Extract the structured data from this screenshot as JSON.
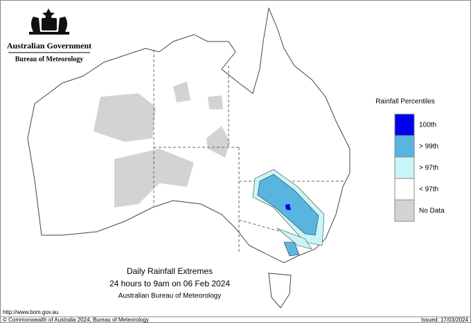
{
  "header": {
    "government": "Australian Government",
    "agency": "Bureau of Meteorology"
  },
  "legend": {
    "title": "Rainfall Percentiles",
    "items": [
      {
        "label": "100th",
        "color": "#0000ee"
      },
      {
        "label": "> 99th",
        "color": "#5ab4e0"
      },
      {
        "label": "> 97th",
        "color": "#c8f5f8"
      },
      {
        "label": "< 97th",
        "color": "#ffffff"
      },
      {
        "label": "No Data",
        "color": "#d3d3d3"
      }
    ]
  },
  "caption": {
    "title": "Daily Rainfall Extremes",
    "period": "24 hours to 9am on 06 Feb 2024",
    "source": "Australian Bureau of Meteorology"
  },
  "footer": {
    "url": "http://www.bom.gov.au",
    "copyright": "© Commonwealth of Australia 2024, Bureau of Meteorology",
    "issued": "Issued: 17/03/2024"
  }
}
